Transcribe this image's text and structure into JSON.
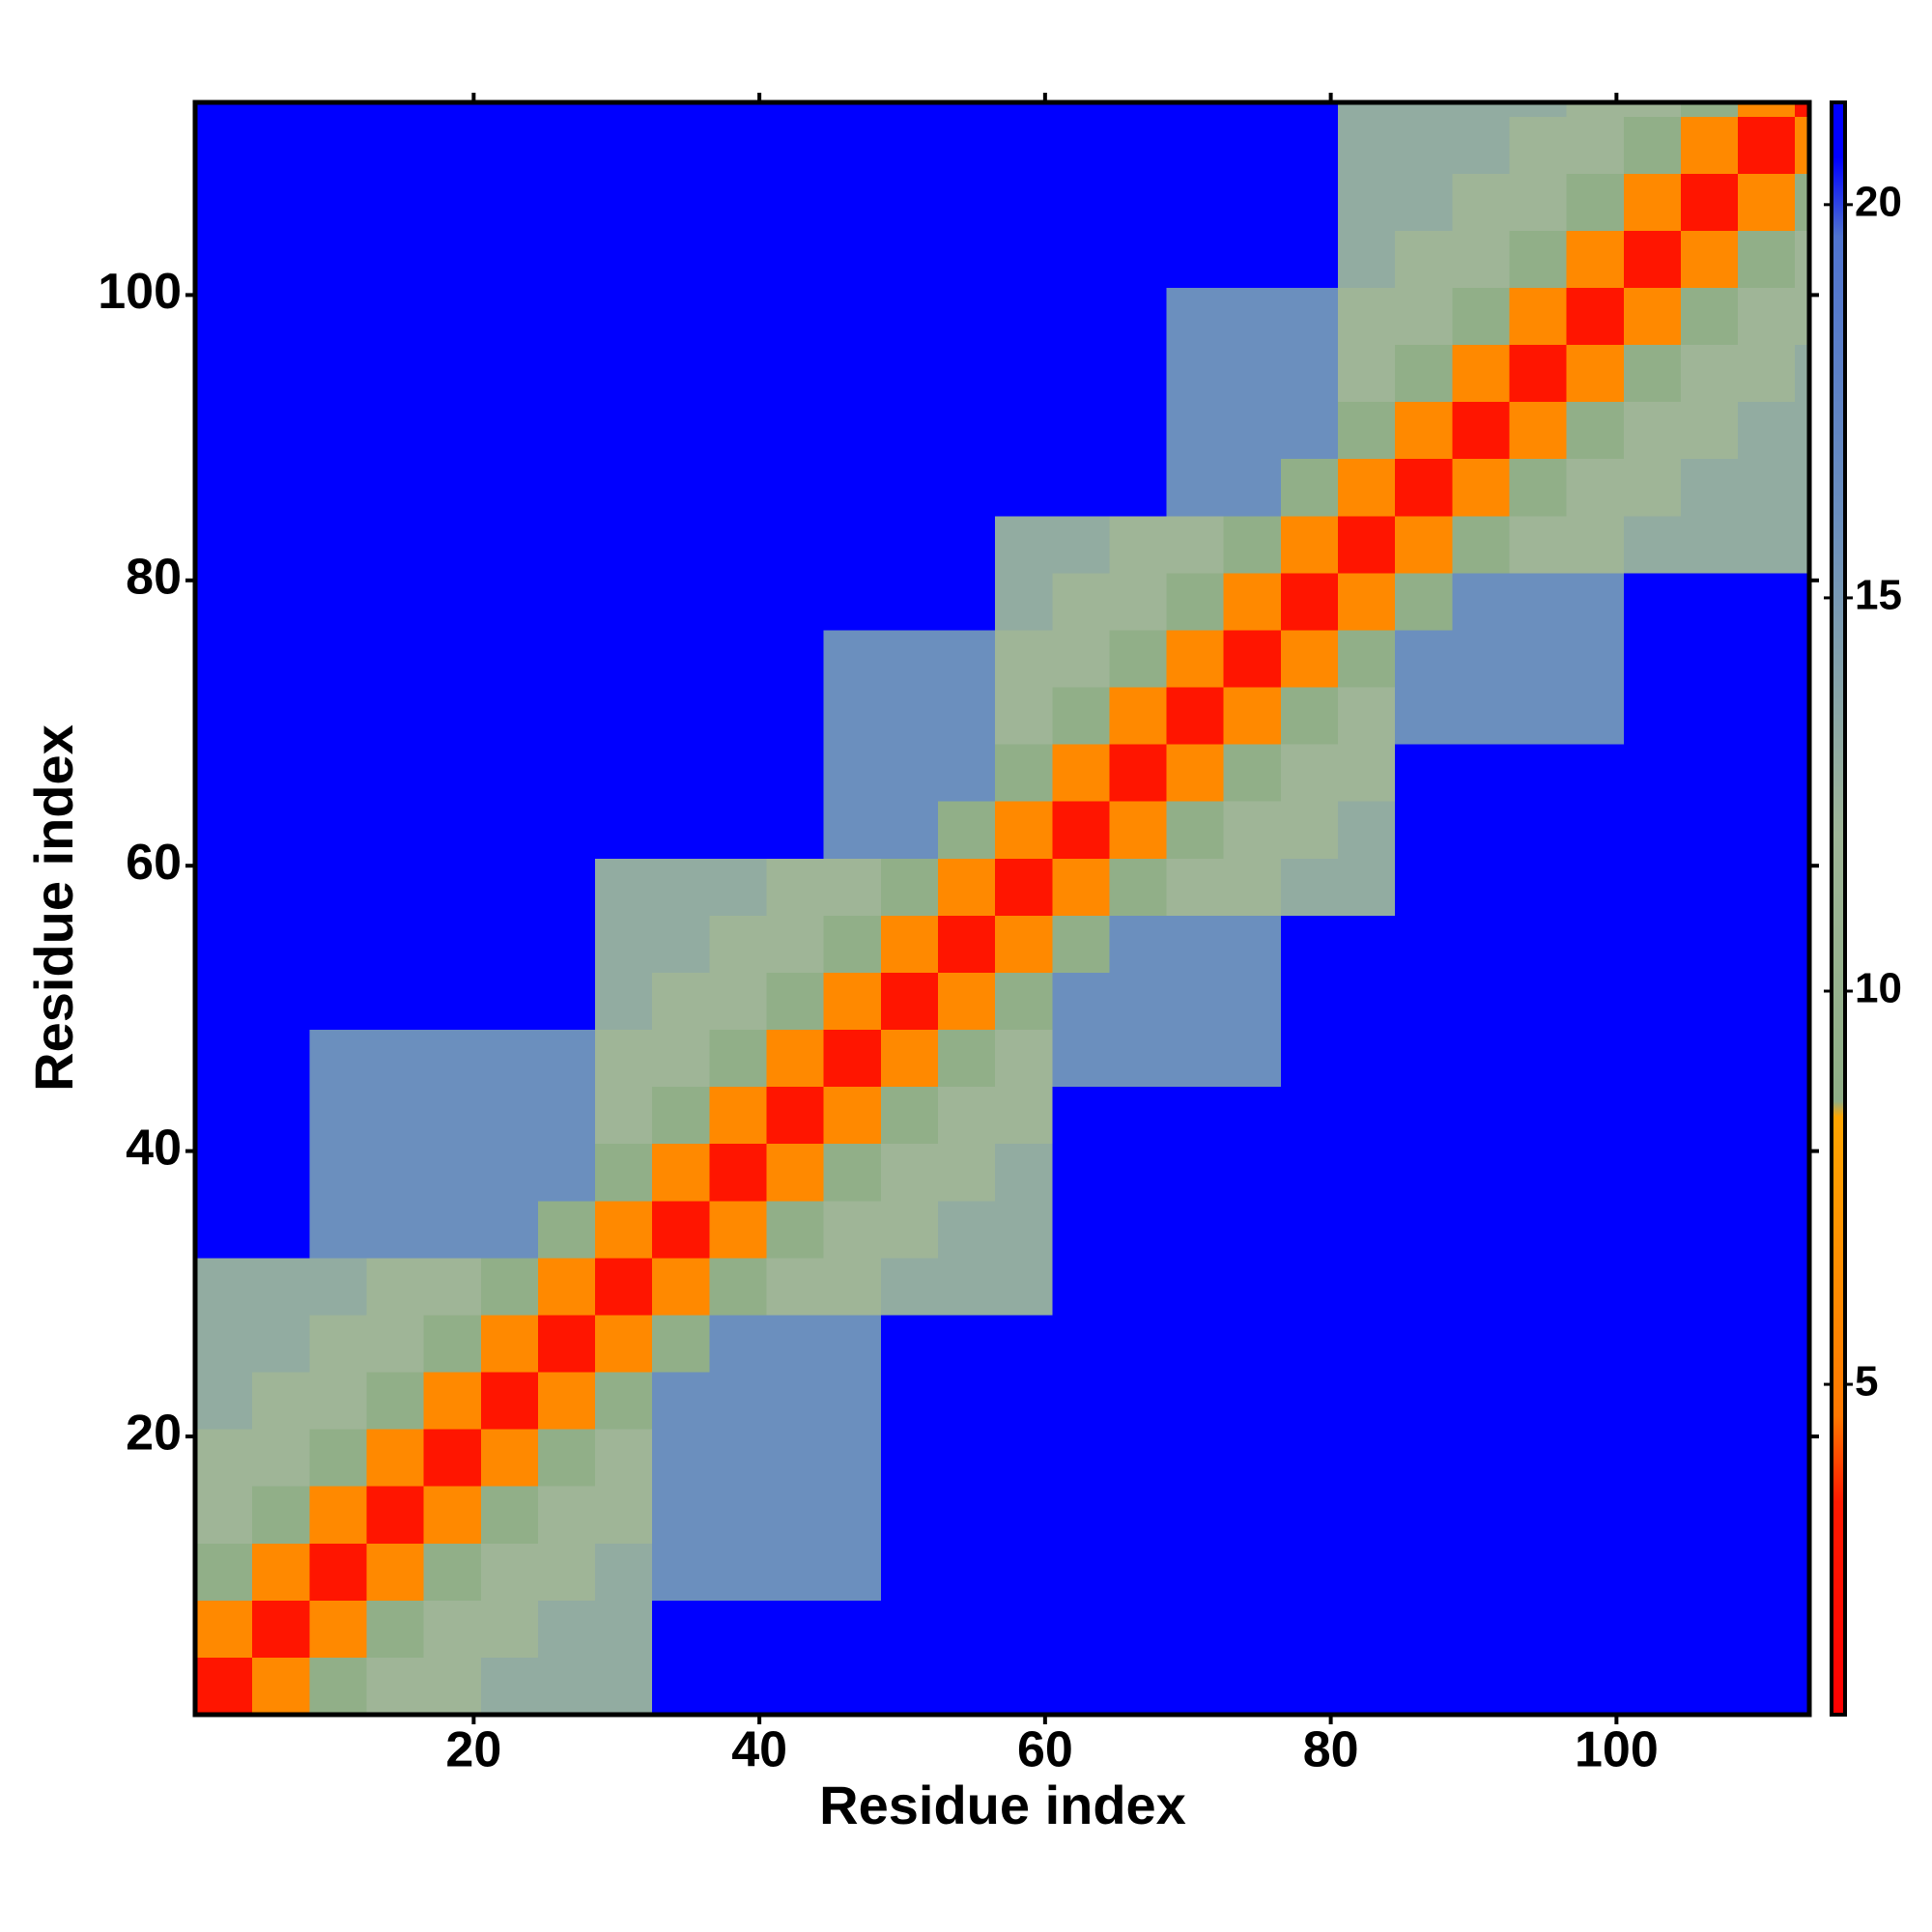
{
  "chart_data": {
    "type": "heatmap",
    "xlabel": "Residue index",
    "ylabel": "Residue index",
    "xlim": [
      0.5,
      113.5
    ],
    "ylim": [
      0.5,
      113.5
    ],
    "xticks": [
      20,
      40,
      60,
      80,
      100
    ],
    "yticks": [
      20,
      40,
      60,
      80,
      100
    ],
    "bins": [
      0.5,
      4.5,
      8.5,
      12.5,
      16.5,
      20.5,
      24.5,
      28.5,
      32.5,
      36.5,
      40.5,
      44.5,
      48.5,
      52.5,
      56.5,
      60.5,
      64.5,
      68.5,
      72.5,
      76.5,
      80.5,
      84.5,
      88.5,
      92.5,
      96.5,
      100.5,
      104.5,
      108.5,
      112.5,
      113.5
    ],
    "values": [
      [
        3,
        6,
        9,
        12,
        12,
        13,
        13,
        13,
        21,
        21,
        21,
        21,
        21,
        21,
        21,
        21,
        21,
        21,
        21,
        21,
        21,
        21,
        21,
        21,
        21,
        21,
        21,
        21,
        21
      ],
      [
        6,
        3,
        6,
        9,
        12,
        12,
        13,
        13,
        21,
        21,
        21,
        21,
        21,
        21,
        21,
        21,
        21,
        21,
        21,
        21,
        21,
        21,
        21,
        21,
        21,
        21,
        21,
        21,
        21
      ],
      [
        9,
        6,
        3,
        6,
        9,
        12,
        12,
        13,
        16,
        16,
        16,
        16,
        21,
        21,
        21,
        21,
        21,
        21,
        21,
        21,
        21,
        21,
        21,
        21,
        21,
        21,
        21,
        21,
        21
      ],
      [
        12,
        9,
        6,
        3,
        6,
        9,
        12,
        12,
        16,
        16,
        16,
        16,
        21,
        21,
        21,
        21,
        21,
        21,
        21,
        21,
        21,
        21,
        21,
        21,
        21,
        21,
        21,
        21,
        21
      ],
      [
        12,
        12,
        9,
        6,
        3,
        6,
        9,
        12,
        16,
        16,
        16,
        16,
        21,
        21,
        21,
        21,
        21,
        21,
        21,
        21,
        21,
        21,
        21,
        21,
        21,
        21,
        21,
        21,
        21
      ],
      [
        13,
        12,
        12,
        9,
        6,
        3,
        6,
        9,
        16,
        16,
        16,
        16,
        21,
        21,
        21,
        21,
        21,
        21,
        21,
        21,
        21,
        21,
        21,
        21,
        21,
        21,
        21,
        21,
        21
      ],
      [
        13,
        13,
        12,
        12,
        9,
        6,
        3,
        6,
        9,
        16,
        16,
        16,
        21,
        21,
        21,
        21,
        21,
        21,
        21,
        21,
        21,
        21,
        21,
        21,
        21,
        21,
        21,
        21,
        21
      ],
      [
        13,
        13,
        13,
        12,
        12,
        9,
        6,
        3,
        6,
        9,
        12,
        12,
        13,
        13,
        13,
        21,
        21,
        21,
        21,
        21,
        21,
        21,
        21,
        21,
        21,
        21,
        21,
        21,
        21
      ],
      [
        21,
        21,
        16,
        16,
        16,
        16,
        9,
        6,
        3,
        6,
        9,
        12,
        12,
        13,
        13,
        21,
        21,
        21,
        21,
        21,
        21,
        21,
        21,
        21,
        21,
        21,
        21,
        21,
        21
      ],
      [
        21,
        21,
        16,
        16,
        16,
        16,
        16,
        9,
        6,
        3,
        6,
        9,
        12,
        12,
        13,
        21,
        21,
        21,
        21,
        21,
        21,
        21,
        21,
        21,
        21,
        21,
        21,
        21,
        21
      ],
      [
        21,
        21,
        16,
        16,
        16,
        16,
        16,
        12,
        9,
        6,
        3,
        6,
        9,
        12,
        12,
        21,
        21,
        21,
        21,
        21,
        21,
        21,
        21,
        21,
        21,
        21,
        21,
        21,
        21
      ],
      [
        21,
        21,
        16,
        16,
        16,
        16,
        16,
        12,
        12,
        9,
        6,
        3,
        6,
        9,
        12,
        16,
        16,
        16,
        16,
        21,
        21,
        21,
        21,
        21,
        21,
        21,
        21,
        21,
        21
      ],
      [
        21,
        21,
        21,
        21,
        21,
        21,
        21,
        13,
        12,
        12,
        9,
        6,
        3,
        6,
        9,
        16,
        16,
        16,
        16,
        21,
        21,
        21,
        21,
        21,
        21,
        21,
        21,
        21,
        21
      ],
      [
        21,
        21,
        21,
        21,
        21,
        21,
        21,
        13,
        13,
        12,
        12,
        9,
        6,
        3,
        6,
        9,
        16,
        16,
        16,
        21,
        21,
        21,
        21,
        21,
        21,
        21,
        21,
        21,
        21
      ],
      [
        21,
        21,
        21,
        21,
        21,
        21,
        21,
        13,
        13,
        13,
        12,
        12,
        9,
        6,
        3,
        6,
        9,
        12,
        12,
        13,
        13,
        21,
        21,
        21,
        21,
        21,
        21,
        21,
        21
      ],
      [
        21,
        21,
        21,
        21,
        21,
        21,
        21,
        21,
        21,
        21,
        21,
        16,
        16,
        9,
        6,
        3,
        6,
        9,
        12,
        12,
        13,
        21,
        21,
        21,
        21,
        21,
        21,
        21,
        21
      ],
      [
        21,
        21,
        21,
        21,
        21,
        21,
        21,
        21,
        21,
        21,
        21,
        16,
        16,
        16,
        9,
        6,
        3,
        6,
        9,
        12,
        12,
        21,
        21,
        21,
        21,
        21,
        21,
        21,
        21
      ],
      [
        21,
        21,
        21,
        21,
        21,
        21,
        21,
        21,
        21,
        21,
        21,
        16,
        16,
        16,
        12,
        9,
        6,
        3,
        6,
        9,
        12,
        16,
        16,
        16,
        16,
        21,
        21,
        21,
        21
      ],
      [
        21,
        21,
        21,
        21,
        21,
        21,
        21,
        21,
        21,
        21,
        21,
        16,
        16,
        16,
        12,
        12,
        9,
        6,
        3,
        6,
        9,
        16,
        16,
        16,
        16,
        21,
        21,
        21,
        21
      ],
      [
        21,
        21,
        21,
        21,
        21,
        21,
        21,
        21,
        21,
        21,
        21,
        21,
        21,
        21,
        13,
        12,
        12,
        9,
        6,
        3,
        6,
        9,
        16,
        16,
        16,
        21,
        21,
        21,
        21
      ],
      [
        21,
        21,
        21,
        21,
        21,
        21,
        21,
        21,
        21,
        21,
        21,
        21,
        21,
        21,
        13,
        13,
        12,
        12,
        9,
        6,
        3,
        6,
        9,
        12,
        12,
        13,
        13,
        13,
        13
      ],
      [
        21,
        21,
        21,
        21,
        21,
        21,
        21,
        21,
        21,
        21,
        21,
        21,
        21,
        21,
        21,
        21,
        21,
        16,
        16,
        9,
        6,
        3,
        6,
        9,
        12,
        12,
        13,
        13,
        13
      ],
      [
        21,
        21,
        21,
        21,
        21,
        21,
        21,
        21,
        21,
        21,
        21,
        21,
        21,
        21,
        21,
        21,
        21,
        16,
        16,
        16,
        9,
        6,
        3,
        6,
        9,
        12,
        12,
        13,
        13
      ],
      [
        21,
        21,
        21,
        21,
        21,
        21,
        21,
        21,
        21,
        21,
        21,
        21,
        21,
        21,
        21,
        21,
        21,
        16,
        16,
        16,
        12,
        9,
        6,
        3,
        6,
        9,
        12,
        12,
        13
      ],
      [
        21,
        21,
        21,
        21,
        21,
        21,
        21,
        21,
        21,
        21,
        21,
        21,
        21,
        21,
        21,
        21,
        21,
        16,
        16,
        16,
        12,
        12,
        9,
        6,
        3,
        6,
        9,
        12,
        12
      ],
      [
        21,
        21,
        21,
        21,
        21,
        21,
        21,
        21,
        21,
        21,
        21,
        21,
        21,
        21,
        21,
        21,
        21,
        21,
        21,
        21,
        13,
        12,
        12,
        9,
        6,
        3,
        6,
        9,
        12
      ],
      [
        21,
        21,
        21,
        21,
        21,
        21,
        21,
        21,
        21,
        21,
        21,
        21,
        21,
        21,
        21,
        21,
        21,
        21,
        21,
        21,
        13,
        13,
        12,
        12,
        9,
        6,
        3,
        6,
        9
      ],
      [
        21,
        21,
        21,
        21,
        21,
        21,
        21,
        21,
        21,
        21,
        21,
        21,
        21,
        21,
        21,
        21,
        21,
        21,
        21,
        21,
        13,
        13,
        13,
        12,
        12,
        9,
        6,
        3,
        6
      ],
      [
        21,
        21,
        21,
        21,
        21,
        21,
        21,
        21,
        21,
        21,
        21,
        21,
        21,
        21,
        21,
        21,
        21,
        21,
        21,
        21,
        13,
        13,
        13,
        13,
        12,
        12,
        9,
        6,
        3
      ]
    ],
    "clim": [
      0.8,
      21.3
    ],
    "cticks": [
      5,
      10,
      15,
      20
    ],
    "colorscale": [
      {
        "value": 0.8,
        "color": "#ff0000"
      },
      {
        "value": 3.5,
        "color": "#ff1a00"
      },
      {
        "value": 4.6,
        "color": "#ff7800"
      },
      {
        "value": 8.4,
        "color": "#ffa500"
      },
      {
        "value": 8.6,
        "color": "#8fae86"
      },
      {
        "value": 12,
        "color": "#9fb597"
      },
      {
        "value": 16,
        "color": "#6b8fbe"
      },
      {
        "value": 19.6,
        "color": "#4f73cf"
      },
      {
        "value": 20.6,
        "color": "#0000ff"
      },
      {
        "value": 21.3,
        "color": "#0000ff"
      }
    ],
    "colorbar": true
  }
}
